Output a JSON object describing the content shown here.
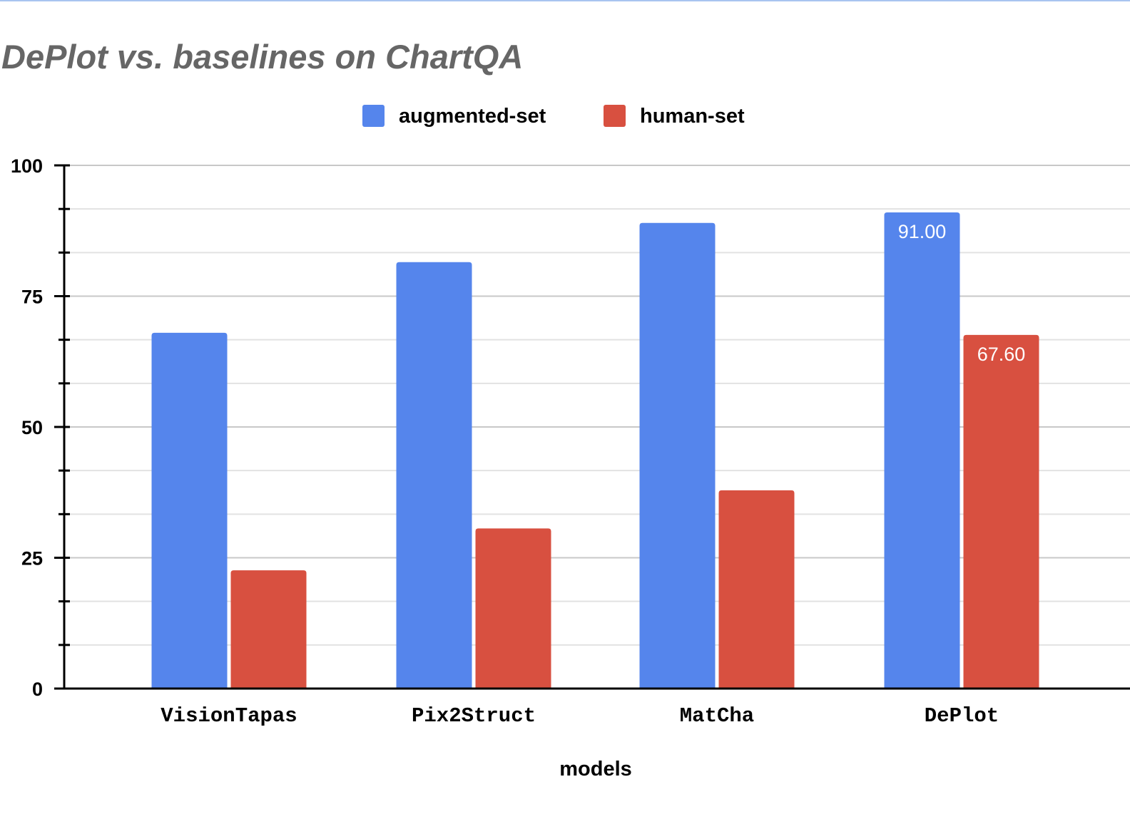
{
  "chart_data": {
    "type": "bar",
    "title": "DePlot vs. baselines on ChartQA",
    "xlabel": "models",
    "ylabel": "",
    "categories": [
      "VisionTapas",
      "Pix2Struct",
      "MatCha",
      "DePlot"
    ],
    "series": [
      {
        "name": "augmented-set",
        "color": "#5585ec",
        "values": [
          68.0,
          81.5,
          89.0,
          91.0
        ]
      },
      {
        "name": "human-set",
        "color": "#d85040",
        "values": [
          22.6,
          30.6,
          37.9,
          67.6
        ]
      }
    ],
    "data_labels": [
      {
        "series": 0,
        "category": 3,
        "text": "91.00"
      },
      {
        "series": 1,
        "category": 3,
        "text": "67.60"
      }
    ],
    "ylim": [
      0,
      100
    ],
    "yticks": [
      "0",
      "25",
      "50",
      "75",
      "100"
    ],
    "grid": true,
    "legend_position": "top"
  }
}
